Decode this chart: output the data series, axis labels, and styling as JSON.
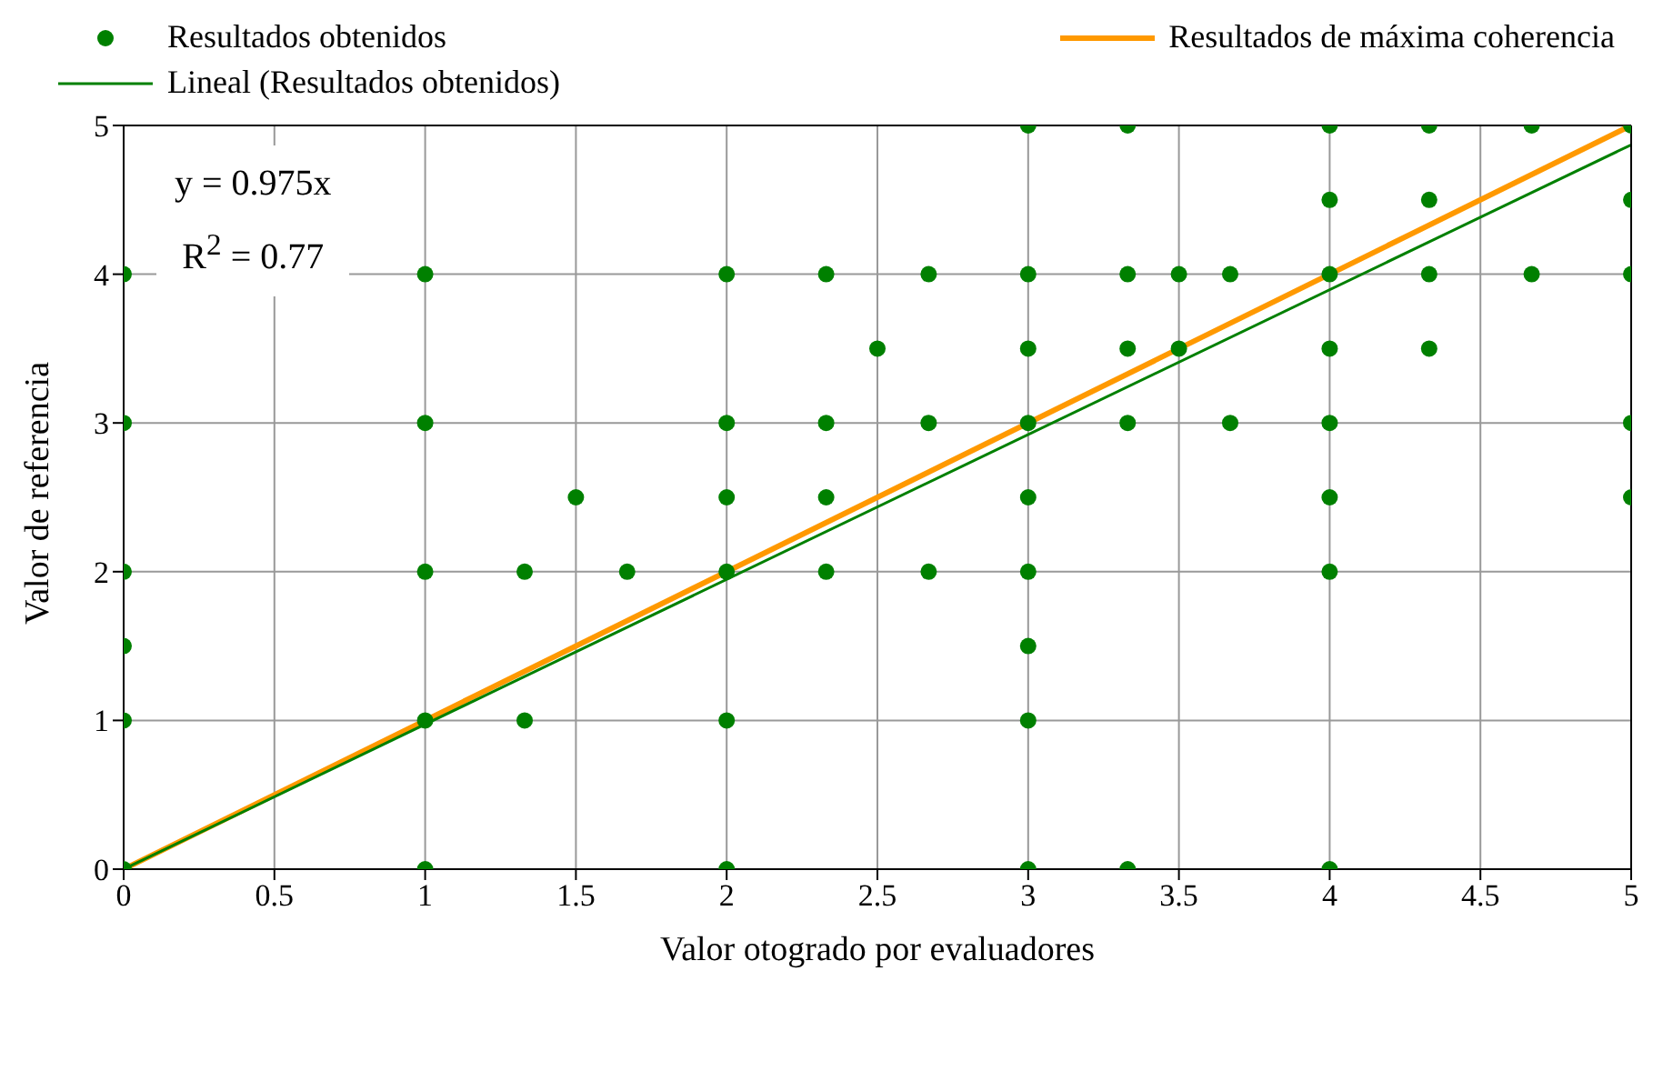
{
  "chart_data": {
    "type": "scatter",
    "xlabel": "Valor otogrado por evaluadores",
    "ylabel": "Valor de referencia",
    "xlim": [
      0,
      5
    ],
    "ylim": [
      0,
      5
    ],
    "xticks": [
      0,
      0.5,
      1,
      1.5,
      2,
      2.5,
      3,
      3.5,
      4,
      4.5,
      5
    ],
    "yticks": [
      0,
      1,
      2,
      3,
      4,
      5
    ],
    "grid": true,
    "legend": "top",
    "annotations": [
      "y = 0.975x",
      "R$^{2}$ = 0.77"
    ],
    "series": [
      {
        "name": "Resultados obtenidos",
        "color": "#008000",
        "marker": "circle",
        "x": [
          0,
          0,
          0,
          0,
          0,
          0,
          1,
          1,
          1,
          1,
          1,
          1.33,
          1.33,
          1.5,
          1.67,
          2,
          2,
          2,
          2,
          2,
          2,
          2.33,
          2.33,
          2.33,
          2.33,
          2.5,
          2.67,
          2.67,
          2.67,
          3,
          3,
          3,
          3,
          3,
          3,
          3,
          3,
          3,
          3.33,
          3.33,
          3.33,
          3.33,
          3.33,
          3.5,
          3.5,
          3.67,
          3.67,
          4,
          4,
          4,
          4,
          4,
          4,
          4,
          4,
          4.33,
          4.33,
          4.33,
          4.33,
          4.67,
          4.67,
          5,
          5,
          5,
          5,
          5
        ],
        "values": [
          4,
          3,
          2,
          1.5,
          1,
          0,
          4,
          3,
          2,
          1,
          0,
          2,
          1,
          2.5,
          2,
          4,
          3,
          2.5,
          2,
          1,
          0,
          4,
          3,
          2.5,
          2,
          3.5,
          4,
          3,
          2,
          5,
          4,
          3.5,
          3,
          2.5,
          2,
          1.5,
          1,
          0,
          5,
          4,
          3.5,
          3,
          0,
          4,
          3.5,
          4,
          3,
          5,
          4.5,
          4,
          3.5,
          3,
          2.5,
          2,
          0,
          5,
          4.5,
          4,
          3.5,
          5,
          4,
          5,
          4.5,
          4,
          3,
          2.5
        ]
      },
      {
        "name": "Resultados de máxima coherencia",
        "type": "line",
        "color": "#ff9900",
        "marker": "none",
        "x": [
          0,
          5
        ],
        "values": [
          0,
          5
        ]
      },
      {
        "name": "Lineal (Resultados obtenidos)",
        "type": "line",
        "color": "#008000",
        "marker": "none",
        "x": [
          0,
          5
        ],
        "values": [
          0,
          4.87
        ]
      }
    ]
  }
}
